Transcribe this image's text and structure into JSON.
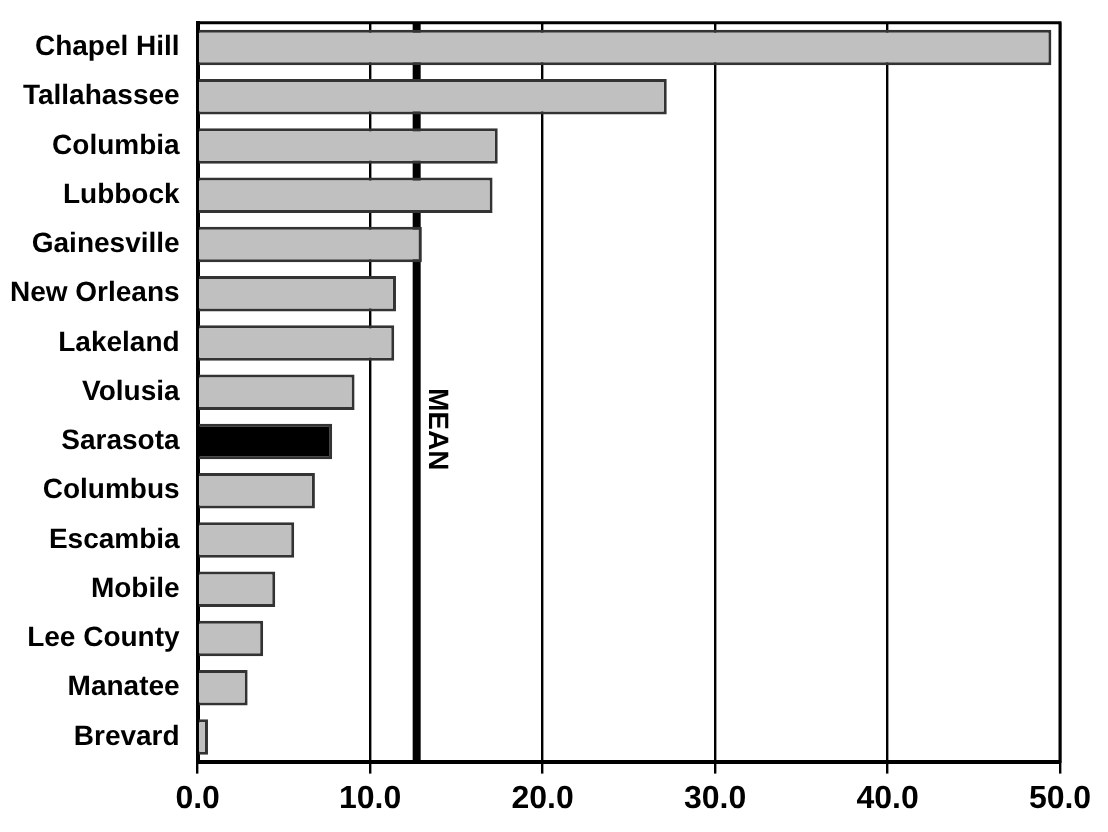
{
  "chart_data": {
    "type": "bar",
    "orientation": "horizontal",
    "categories": [
      "Chapel Hill",
      "Tallahassee",
      "Columbia",
      "Lubbock",
      "Gainesville",
      "New Orleans",
      "Lakeland",
      "Volusia",
      "Sarasota",
      "Columbus",
      "Escambia",
      "Mobile",
      "Lee County",
      "Manatee",
      "Brevard"
    ],
    "values": [
      49.5,
      27.2,
      17.4,
      17.1,
      13.0,
      11.5,
      11.4,
      9.1,
      7.8,
      6.8,
      5.6,
      4.5,
      3.8,
      2.9,
      0.6
    ],
    "colors": [
      "#c0c0c0",
      "#c0c0c0",
      "#c0c0c0",
      "#c0c0c0",
      "#c0c0c0",
      "#c0c0c0",
      "#c0c0c0",
      "#c0c0c0",
      "#000000",
      "#c0c0c0",
      "#c0c0c0",
      "#c0c0c0",
      "#c0c0c0",
      "#c0c0c0",
      "#c0c0c0"
    ],
    "xlim": [
      0,
      50
    ],
    "xticks": [
      {
        "value": 0,
        "label": "0.0"
      },
      {
        "value": 10,
        "label": "10.0"
      },
      {
        "value": 20,
        "label": "20.0"
      },
      {
        "value": 30,
        "label": "30.0"
      },
      {
        "value": 40,
        "label": "40.0"
      },
      {
        "value": 50,
        "label": "50.0"
      }
    ],
    "grid": "x",
    "legend": false,
    "ref_lines": [
      {
        "axis": "x",
        "value": 12.7,
        "label": "MEAN",
        "color": "#000000"
      }
    ]
  }
}
